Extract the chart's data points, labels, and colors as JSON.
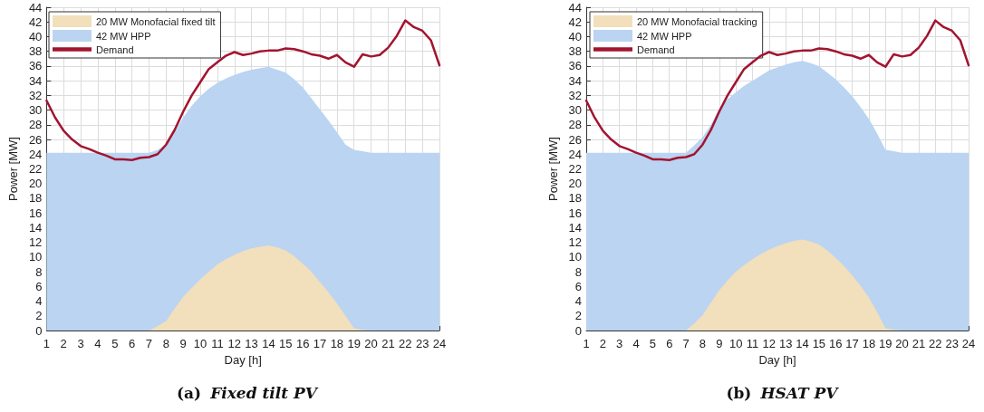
{
  "chart_data": [
    {
      "type": "area",
      "title": "(a) Fixed tilt PV",
      "xlabel": "Day [h]",
      "ylabel": "Power [MW]",
      "x": [
        1,
        1.5,
        2,
        2.5,
        3,
        3.5,
        4,
        4.5,
        5,
        5.5,
        6,
        6.5,
        7,
        7.5,
        8,
        8.5,
        9,
        9.5,
        10,
        10.5,
        11,
        11.5,
        12,
        12.5,
        13,
        13.5,
        14,
        14.5,
        15,
        15.5,
        16,
        16.5,
        17,
        17.5,
        18,
        18.5,
        19,
        19.5,
        20,
        20.5,
        21,
        21.5,
        22,
        22.5,
        23,
        23.5,
        24
      ],
      "series": [
        {
          "name": "20 MW Monofacial fixed tilt",
          "color": "#f2dfbb",
          "values": [
            0,
            0,
            0,
            0,
            0,
            0,
            0,
            0,
            0,
            0,
            0,
            0,
            0,
            0.6,
            1.3,
            3.0,
            4.6,
            5.8,
            7.0,
            8.0,
            9.0,
            9.7,
            10.3,
            10.8,
            11.2,
            11.4,
            11.6,
            11.3,
            10.9,
            10.1,
            9.1,
            8.0,
            6.6,
            5.2,
            3.7,
            2.0,
            0.3,
            0.1,
            0,
            0,
            0,
            0,
            0,
            0,
            0,
            0,
            0
          ]
        },
        {
          "name": "42 MW HPP",
          "color": "#bad4f2",
          "values": [
            24.2,
            24.2,
            24.2,
            24.2,
            24.2,
            24.2,
            24.2,
            24.2,
            24.2,
            24.2,
            24.2,
            24.2,
            24.2,
            24.6,
            25.4,
            27.0,
            29.0,
            30.6,
            31.9,
            32.9,
            33.7,
            34.3,
            34.8,
            35.2,
            35.5,
            35.7,
            35.9,
            35.5,
            35.1,
            34.2,
            33.1,
            31.6,
            30.1,
            28.6,
            27.0,
            25.3,
            24.6,
            24.4,
            24.2,
            24.2,
            24.2,
            24.2,
            24.2,
            24.2,
            24.2,
            24.2,
            24.2
          ]
        },
        {
          "name": "Demand",
          "type": "line",
          "color": "#a2142f",
          "values": [
            31.3,
            29.0,
            27.2,
            26.0,
            25.1,
            24.7,
            24.2,
            23.8,
            23.3,
            23.3,
            23.2,
            23.5,
            23.6,
            24.0,
            25.3,
            27.3,
            29.8,
            32.0,
            33.8,
            35.6,
            36.5,
            37.4,
            37.9,
            37.5,
            37.7,
            38.0,
            38.1,
            38.1,
            38.4,
            38.3,
            38.0,
            37.6,
            37.4,
            37.0,
            37.5,
            36.5,
            35.9,
            37.6,
            37.3,
            37.5,
            38.5,
            40.1,
            42.2,
            41.3,
            40.8,
            39.5,
            36.1
          ]
        }
      ],
      "xlim": [
        1,
        24
      ],
      "xticks": [
        1,
        2,
        3,
        4,
        5,
        6,
        7,
        8,
        9,
        10,
        11,
        12,
        13,
        14,
        15,
        16,
        17,
        18,
        19,
        20,
        21,
        22,
        23,
        24
      ],
      "ylim": [
        0,
        44
      ],
      "yticks": [
        0,
        2,
        4,
        6,
        8,
        10,
        12,
        14,
        16,
        18,
        20,
        22,
        24,
        26,
        28,
        30,
        32,
        34,
        36,
        38,
        40,
        42,
        44
      ],
      "grid": true,
      "legend": "top left",
      "marker": "none",
      "line_style": "solid"
    },
    {
      "type": "area",
      "title": "(b) HSAT PV",
      "xlabel": "Day [h]",
      "ylabel": "Power [MW]",
      "x": [
        1,
        1.5,
        2,
        2.5,
        3,
        3.5,
        4,
        4.5,
        5,
        5.5,
        6,
        6.5,
        7,
        7.5,
        8,
        8.5,
        9,
        9.5,
        10,
        10.5,
        11,
        11.5,
        12,
        12.5,
        13,
        13.5,
        14,
        14.5,
        15,
        15.5,
        16,
        16.5,
        17,
        17.5,
        18,
        18.5,
        19,
        19.5,
        20,
        20.5,
        21,
        21.5,
        22,
        22.5,
        23,
        23.5,
        24
      ],
      "series": [
        {
          "name": "20 MW Monofacial tracking",
          "color": "#f2dfbb",
          "values": [
            0,
            0,
            0,
            0,
            0,
            0,
            0,
            0,
            0,
            0,
            0,
            0,
            0,
            1.0,
            2.1,
            3.8,
            5.5,
            6.8,
            8.0,
            8.9,
            9.7,
            10.4,
            11.0,
            11.5,
            11.9,
            12.2,
            12.4,
            12.1,
            11.7,
            10.9,
            9.9,
            8.8,
            7.5,
            6.1,
            4.5,
            2.5,
            0.3,
            0.1,
            0,
            0,
            0,
            0,
            0,
            0,
            0,
            0,
            0
          ]
        },
        {
          "name": "42 MW HPP",
          "color": "#bad4f2",
          "values": [
            24.2,
            24.2,
            24.2,
            24.2,
            24.2,
            24.2,
            24.2,
            24.2,
            24.2,
            24.2,
            24.2,
            24.2,
            24.2,
            25.2,
            26.3,
            28.0,
            30.2,
            31.5,
            32.4,
            33.3,
            34.0,
            34.7,
            35.4,
            35.8,
            36.2,
            36.5,
            36.7,
            36.4,
            36.0,
            35.1,
            34.2,
            33.1,
            31.9,
            30.4,
            28.8,
            26.8,
            24.6,
            24.4,
            24.2,
            24.2,
            24.2,
            24.2,
            24.2,
            24.2,
            24.2,
            24.2,
            24.2
          ]
        },
        {
          "name": "Demand",
          "type": "line",
          "color": "#a2142f",
          "values": [
            31.3,
            29.0,
            27.2,
            26.0,
            25.1,
            24.7,
            24.2,
            23.8,
            23.3,
            23.3,
            23.2,
            23.5,
            23.6,
            24.0,
            25.3,
            27.3,
            29.8,
            32.0,
            33.8,
            35.6,
            36.5,
            37.4,
            37.9,
            37.5,
            37.7,
            38.0,
            38.1,
            38.1,
            38.4,
            38.3,
            38.0,
            37.6,
            37.4,
            37.0,
            37.5,
            36.5,
            35.9,
            37.6,
            37.3,
            37.5,
            38.5,
            40.1,
            42.2,
            41.3,
            40.8,
            39.5,
            36.1
          ]
        }
      ],
      "xlim": [
        1,
        24
      ],
      "xticks": [
        1,
        2,
        3,
        4,
        5,
        6,
        7,
        8,
        9,
        10,
        11,
        12,
        13,
        14,
        15,
        16,
        17,
        18,
        19,
        20,
        21,
        22,
        23,
        24
      ],
      "ylim": [
        0,
        44
      ],
      "yticks": [
        0,
        2,
        4,
        6,
        8,
        10,
        12,
        14,
        16,
        18,
        20,
        22,
        24,
        26,
        28,
        30,
        32,
        34,
        36,
        38,
        40,
        42,
        44
      ],
      "grid": true,
      "legend": "top left",
      "marker": "none",
      "line_style": "solid"
    }
  ]
}
